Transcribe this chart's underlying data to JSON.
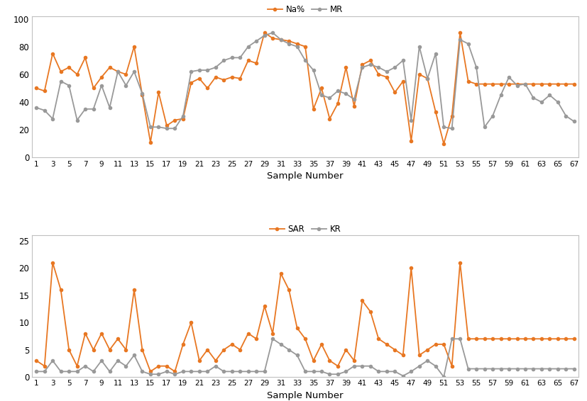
{
  "x": [
    1,
    2,
    3,
    4,
    5,
    6,
    7,
    8,
    9,
    10,
    11,
    12,
    13,
    14,
    15,
    16,
    17,
    18,
    19,
    20,
    21,
    22,
    23,
    24,
    25,
    26,
    27,
    28,
    29,
    30,
    31,
    32,
    33,
    34,
    35,
    36,
    37,
    38,
    39,
    40,
    41,
    42,
    43,
    44,
    45,
    46,
    47,
    48,
    49,
    50,
    51,
    52,
    53,
    54,
    55,
    56,
    57,
    58,
    59,
    60,
    61,
    62,
    63,
    64,
    65,
    66,
    67
  ],
  "Na_pct": [
    50,
    48,
    75,
    62,
    65,
    60,
    72,
    50,
    58,
    65,
    62,
    60,
    80,
    45,
    11,
    47,
    23,
    27,
    28,
    54,
    57,
    50,
    58,
    56,
    58,
    57,
    70,
    68,
    90,
    86,
    85,
    84,
    82,
    80,
    35,
    50,
    28,
    39,
    65,
    37,
    67,
    70,
    60,
    58,
    47,
    55,
    12,
    60,
    57,
    33,
    10,
    30,
    90,
    55,
    53,
    53,
    53,
    53,
    53,
    53,
    53,
    53,
    53,
    53,
    53,
    53,
    53
  ],
  "MR": [
    36,
    34,
    28,
    55,
    52,
    27,
    35,
    35,
    52,
    36,
    62,
    52,
    62,
    46,
    22,
    22,
    21,
    21,
    30,
    62,
    63,
    63,
    65,
    70,
    72,
    72,
    80,
    84,
    88,
    90,
    85,
    82,
    80,
    70,
    63,
    45,
    43,
    48,
    46,
    42,
    65,
    67,
    65,
    62,
    65,
    70,
    27,
    80,
    57,
    75,
    22,
    21,
    85,
    82,
    65,
    22,
    30,
    45,
    58,
    52,
    53,
    43,
    40,
    45,
    40,
    30,
    26
  ],
  "SAR": [
    3,
    2,
    21,
    16,
    5,
    2,
    8,
    5,
    8,
    5,
    7,
    5,
    16,
    5,
    1,
    2,
    2,
    1,
    6,
    10,
    3,
    5,
    3,
    5,
    6,
    5,
    8,
    7,
    13,
    8,
    19,
    16,
    9,
    7,
    3,
    6,
    3,
    2,
    5,
    3,
    14,
    12,
    7,
    6,
    5,
    4,
    20,
    4,
    5,
    6,
    6,
    2,
    21,
    7,
    7,
    7,
    7,
    7,
    7,
    7,
    7,
    7,
    7,
    7,
    7,
    7,
    7
  ],
  "KR": [
    1,
    1,
    3,
    1,
    1,
    1,
    2,
    1,
    3,
    1,
    3,
    2,
    4,
    1,
    0.5,
    0.5,
    1,
    0.5,
    1,
    1,
    1,
    1,
    2,
    1,
    1,
    1,
    1,
    1,
    1,
    7,
    6,
    5,
    4,
    1,
    1,
    1,
    0.5,
    0.5,
    1,
    2,
    2,
    2,
    1,
    1,
    1,
    0.2,
    1,
    2,
    3,
    2,
    0,
    7,
    7,
    1.5,
    1.5,
    1.5,
    1.5,
    1.5,
    1.5,
    1.5,
    1.5,
    1.5,
    1.5,
    1.5,
    1.5,
    1.5,
    1.5
  ],
  "orange_color": "#E87722",
  "gray_color": "#999999",
  "top_yticks": [
    0,
    20,
    40,
    60,
    80,
    100
  ],
  "bottom_yticks": [
    0,
    5,
    10,
    15,
    20,
    25
  ],
  "xtick_labels": [
    "1",
    "3",
    "5",
    "7",
    "9",
    "11",
    "13",
    "15",
    "17",
    "19",
    "21",
    "23",
    "25",
    "27",
    "29",
    "31",
    "33",
    "35",
    "37",
    "39",
    "41",
    "43",
    "45",
    "47",
    "49",
    "51",
    "53",
    "55",
    "57",
    "59",
    "61",
    "63",
    "65",
    "67"
  ],
  "xlabel": "Sample Number",
  "top_legend_labels": [
    "Na%",
    "MR"
  ],
  "bottom_legend_labels": [
    "SAR",
    "KR"
  ],
  "border_color": "#C0C0C0",
  "fig_bg": "#FFFFFF"
}
